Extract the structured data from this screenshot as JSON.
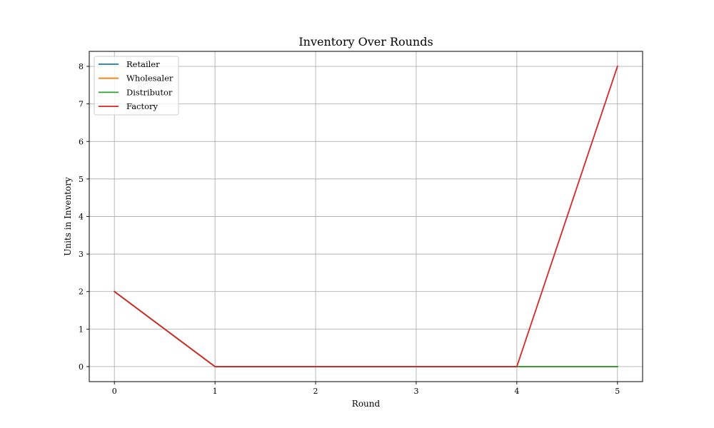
{
  "chart_data": {
    "type": "line",
    "title": "Inventory Over Rounds",
    "xlabel": "Round",
    "ylabel": "Units in Inventory",
    "x": [
      0,
      1,
      2,
      3,
      4,
      5
    ],
    "x_ticks": [
      "0",
      "1",
      "2",
      "3",
      "4",
      "5"
    ],
    "y_ticks": [
      "0",
      "1",
      "2",
      "3",
      "4",
      "5",
      "6",
      "7",
      "8"
    ],
    "xlim": [
      -0.25,
      5.25
    ],
    "ylim": [
      -0.4,
      8.4
    ],
    "grid": true,
    "legend_position": "top-left",
    "series": [
      {
        "name": "Retailer",
        "color": "#1f77b4",
        "values": [
          2,
          0,
          0,
          0,
          0,
          0
        ]
      },
      {
        "name": "Wholesaler",
        "color": "#ff7f0e",
        "values": [
          2,
          0,
          0,
          0,
          0,
          0
        ]
      },
      {
        "name": "Distributor",
        "color": "#2ca02c",
        "values": [
          2,
          0,
          0,
          0,
          0,
          0
        ]
      },
      {
        "name": "Factory",
        "color": "#d62728",
        "values": [
          2,
          0,
          0,
          0,
          0,
          8
        ]
      }
    ]
  }
}
